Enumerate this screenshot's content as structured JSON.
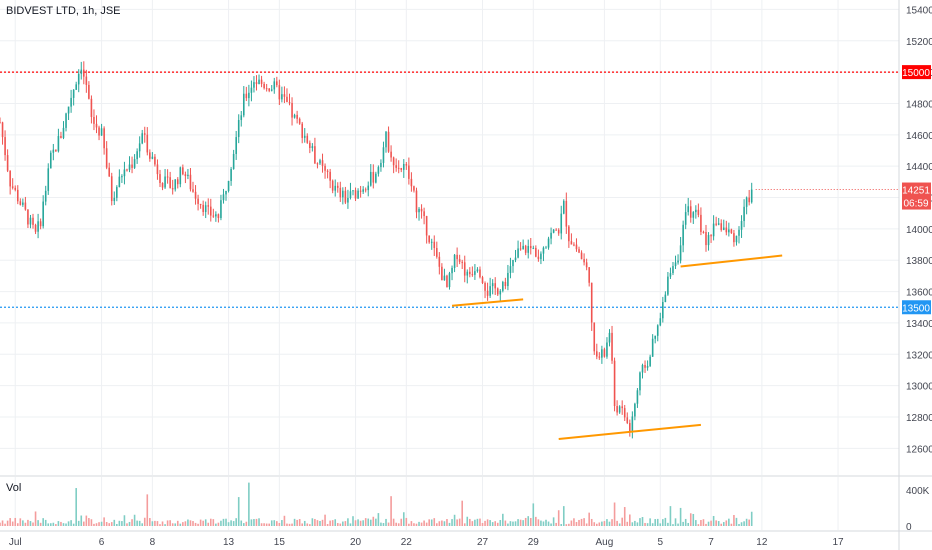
{
  "header": {
    "title": "BIDVEST LTD, 1h, JSE"
  },
  "volume_pane": {
    "label": "Vol"
  },
  "chart_data": {
    "type": "candlestick",
    "title": "BIDVEST LTD, 1h, JSE",
    "y_axis": {
      "ticks": [
        12600,
        12800,
        13000,
        13200,
        13400,
        13600,
        13800,
        14000,
        14200,
        14400,
        14600,
        14800,
        15000,
        15200,
        15400
      ],
      "range": [
        12430,
        15460
      ]
    },
    "x_axis": {
      "labels": [
        "Jul",
        "6",
        "8",
        "13",
        "15",
        "20",
        "22",
        "27",
        "29",
        "Aug",
        "5",
        "7",
        "12",
        "17"
      ],
      "range": [
        0,
        177
      ]
    },
    "volume_axis": {
      "ticks": [
        "400K",
        "0"
      ]
    },
    "price_lines": [
      {
        "name": "resistance",
        "price": 15000,
        "label": "15000",
        "color": "#ff0000"
      },
      {
        "name": "support",
        "price": 13500,
        "label": "13500",
        "color": "#2196f3"
      }
    ],
    "last_price": {
      "price": 14251,
      "label": "14251",
      "countdown": "06:59",
      "color": "#ef5350"
    },
    "trendlines": [
      {
        "x1": 89,
        "y1": 13510,
        "x2": 103,
        "y2": 13550,
        "color": "#ff9800"
      },
      {
        "x1": 110,
        "y1": 12660,
        "x2": 138,
        "y2": 12750,
        "color": "#ff9800"
      },
      {
        "x1": 134,
        "y1": 13760,
        "x2": 154,
        "y2": 13830,
        "color": "#ff9800"
      }
    ],
    "colors": {
      "up": "#26a69a",
      "down": "#ef5350",
      "volume_up": "#7fcdc4",
      "volume_down": "#f49c9c"
    },
    "anchors": [
      [
        0,
        14680
      ],
      [
        2,
        14300
      ],
      [
        5,
        14100
      ],
      [
        7,
        13960
      ],
      [
        8,
        14060
      ],
      [
        10,
        14450
      ],
      [
        12,
        14600
      ],
      [
        14,
        14850
      ],
      [
        16,
        15050
      ],
      [
        17,
        14900
      ],
      [
        18,
        14700
      ],
      [
        20,
        14600
      ],
      [
        22,
        14200
      ],
      [
        24,
        14350
      ],
      [
        26,
        14420
      ],
      [
        28,
        14600
      ],
      [
        30,
        14450
      ],
      [
        32,
        14300
      ],
      [
        34,
        14270
      ],
      [
        36,
        14380
      ],
      [
        38,
        14240
      ],
      [
        40,
        14150
      ],
      [
        41,
        14100
      ],
      [
        43,
        14080
      ],
      [
        44,
        14200
      ],
      [
        46,
        14500
      ],
      [
        48,
        14820
      ],
      [
        50,
        14950
      ],
      [
        52,
        14920
      ],
      [
        54,
        14900
      ],
      [
        56,
        14820
      ],
      [
        58,
        14700
      ],
      [
        60,
        14600
      ],
      [
        62,
        14450
      ],
      [
        64,
        14350
      ],
      [
        66,
        14250
      ],
      [
        68,
        14190
      ],
      [
        70,
        14230
      ],
      [
        72,
        14290
      ],
      [
        74,
        14350
      ],
      [
        76,
        14580
      ],
      [
        78,
        14400
      ],
      [
        80,
        14380
      ],
      [
        82,
        14150
      ],
      [
        84,
        14000
      ],
      [
        86,
        13800
      ],
      [
        88,
        13620
      ],
      [
        90,
        13850
      ],
      [
        92,
        13700
      ],
      [
        94,
        13780
      ],
      [
        96,
        13600
      ],
      [
        98,
        13620
      ],
      [
        100,
        13700
      ],
      [
        102,
        13850
      ],
      [
        104,
        13880
      ],
      [
        106,
        13850
      ],
      [
        108,
        13950
      ],
      [
        110,
        14000
      ],
      [
        111,
        14150
      ],
      [
        112,
        13950
      ],
      [
        114,
        13850
      ],
      [
        116,
        13700
      ],
      [
        117,
        13180
      ],
      [
        119,
        13200
      ],
      [
        120,
        13350
      ],
      [
        121,
        12880
      ],
      [
        123,
        12800
      ],
      [
        124,
        12720
      ],
      [
        126,
        13050
      ],
      [
        128,
        13200
      ],
      [
        130,
        13420
      ],
      [
        132,
        13750
      ],
      [
        134,
        13870
      ],
      [
        135,
        14100
      ],
      [
        137,
        14120
      ],
      [
        139,
        13900
      ],
      [
        141,
        14050
      ],
      [
        143,
        13980
      ],
      [
        145,
        13950
      ],
      [
        147,
        14160
      ],
      [
        148,
        14251
      ]
    ],
    "volume": {
      "spikes": [
        {
          "x": 15,
          "value": 420000
        },
        {
          "x": 29,
          "value": 350000
        },
        {
          "x": 47,
          "value": 320000
        },
        {
          "x": 49,
          "value": 480000
        },
        {
          "x": 77,
          "value": 330000
        },
        {
          "x": 91,
          "value": 280000
        },
        {
          "x": 105,
          "value": 250000
        },
        {
          "x": 111,
          "value": 220000
        },
        {
          "x": 121,
          "value": 260000
        },
        {
          "x": 123,
          "value": 210000
        },
        {
          "x": 132,
          "value": 220000
        },
        {
          "x": 134,
          "value": 200000
        }
      ]
    }
  }
}
